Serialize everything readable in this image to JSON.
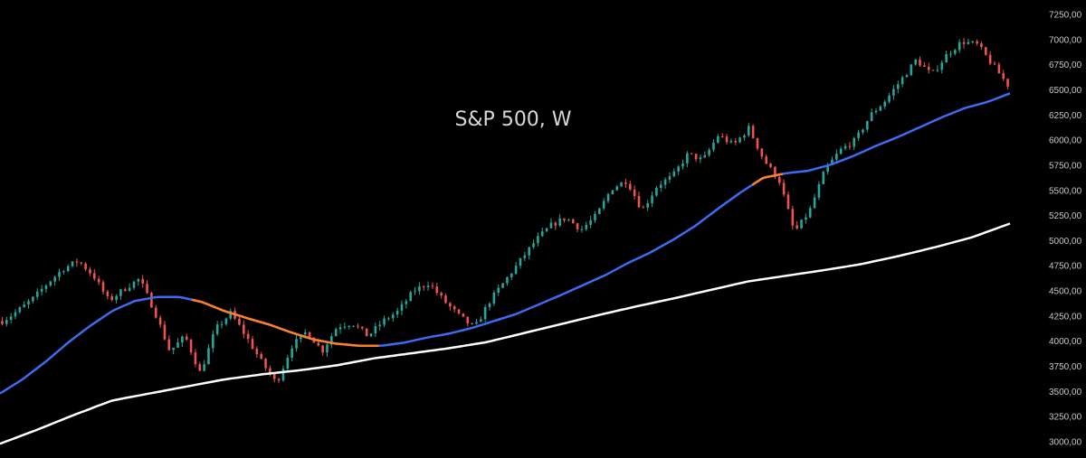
{
  "chart_data": {
    "type": "candlestick",
    "title": "S&P 500, W",
    "ylim": [
      3000,
      7250
    ],
    "y_ticks": [
      "7250,00",
      "7000,00",
      "6750,00",
      "6500,00",
      "6250,00",
      "6000,00",
      "5750,00",
      "5500,00",
      "5250,00",
      "5000,00",
      "4750,00",
      "4500,00",
      "4250,00",
      "4000,00",
      "3750,00",
      "3500,00",
      "3250,00",
      "3000,00"
    ],
    "y_tick_values": [
      7250,
      7000,
      6750,
      6500,
      6250,
      6000,
      5750,
      5500,
      5250,
      5000,
      4750,
      4500,
      4250,
      4000,
      3750,
      3500,
      3250,
      3000
    ],
    "grid": false,
    "colors": {
      "background": "#000000",
      "up": "#26a69a",
      "down": "#ef5350",
      "ma_fast": "#3d6cf0",
      "ma_fast_below": "#ff7f27",
      "ma_slow": "#ffffff",
      "text": "#d8d8d8"
    },
    "price_path": [
      4200,
      4300,
      4420,
      4580,
      4720,
      4800,
      4650,
      4400,
      4520,
      4620,
      4300,
      3900,
      4050,
      3680,
      4120,
      4280,
      4050,
      3800,
      3580,
      3950,
      4100,
      3900,
      4150,
      4180,
      4050,
      4200,
      4300,
      4500,
      4580,
      4400,
      4250,
      4130,
      4400,
      4600,
      4800,
      5000,
      5150,
      5230,
      5110,
      5250,
      5520,
      5600,
      5300,
      5550,
      5640,
      5860,
      5800,
      6050,
      5950,
      6120,
      5800,
      5600,
      5080,
      5300,
      5700,
      5900,
      6000,
      6250,
      6400,
      6600,
      6800,
      6650,
      6850,
      6980,
      6950,
      6750,
      6550
    ],
    "ma_fast": [
      3480,
      3620,
      3790,
      3980,
      4150,
      4300,
      4400,
      4440,
      4440,
      4390,
      4300,
      4230,
      4165,
      4085,
      4015,
      3975,
      3955,
      3955,
      3985,
      4035,
      4075,
      4130,
      4200,
      4270,
      4365,
      4460,
      4560,
      4660,
      4780,
      4885,
      5010,
      5150,
      5320,
      5480,
      5625,
      5670,
      5695,
      5755,
      5840,
      5940,
      6030,
      6130,
      6230,
      6320,
      6380,
      6465
    ],
    "ma_fast_below_ranges": [
      [
        0.19,
        0.375
      ],
      [
        0.745,
        0.775
      ]
    ],
    "ma_slow": [
      2980,
      3120,
      3270,
      3410,
      3480,
      3550,
      3620,
      3670,
      3710,
      3760,
      3830,
      3880,
      3930,
      3990,
      4080,
      4170,
      4260,
      4345,
      4425,
      4510,
      4595,
      4650,
      4705,
      4765,
      4845,
      4935,
      5035,
      5170
    ]
  }
}
